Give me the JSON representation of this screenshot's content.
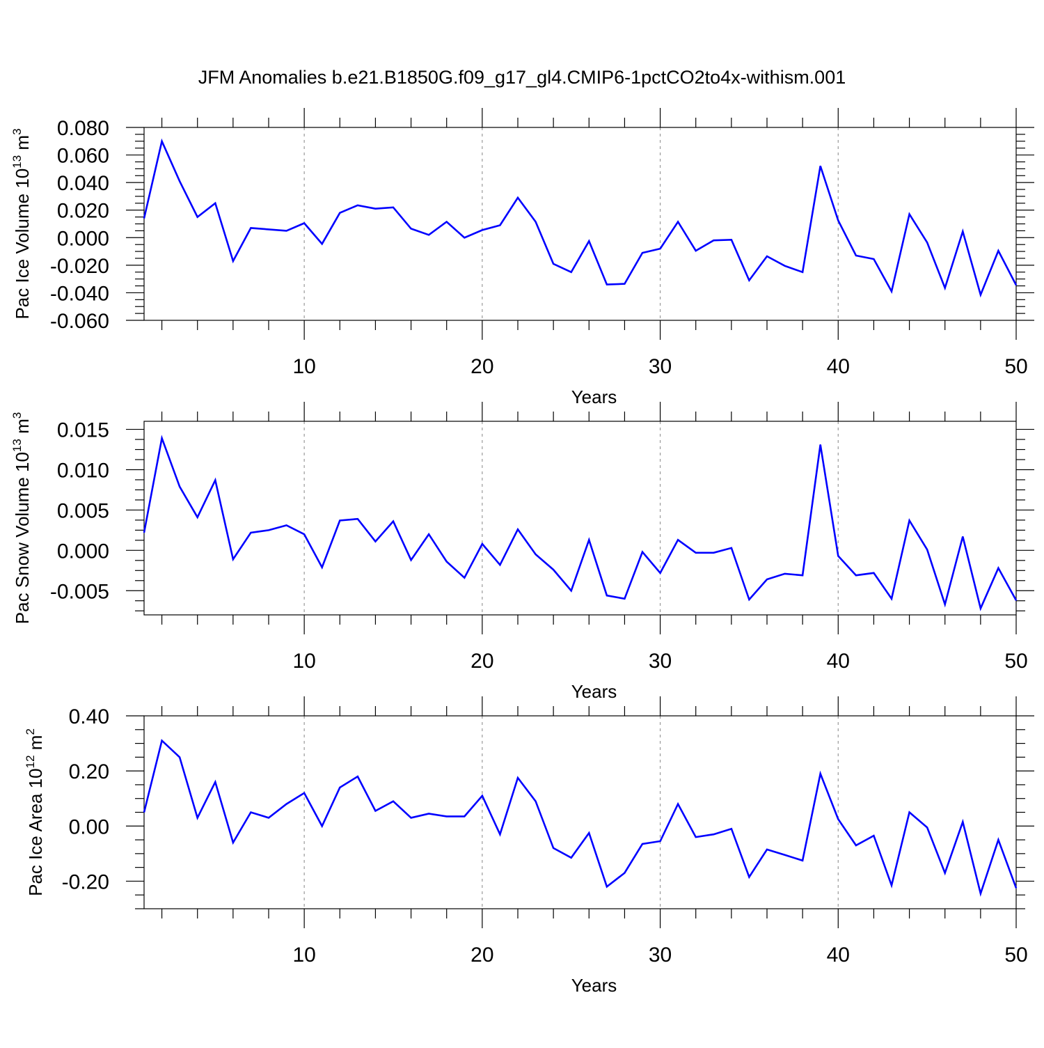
{
  "title": "JFM Anomalies b.e21.B1850G.f09_g17_gl4.CMIP6-1pctCO2to4x-withism.001",
  "colors": {
    "line": "#0000ff",
    "axis": "#000000",
    "grid": "#999999"
  },
  "chart_data": [
    {
      "type": "line",
      "ylabel_text": "Pac Ice Volume 10",
      "ylabel_exp": "13",
      "ylabel_unit": " m",
      "ylabel_unit_exp": "3",
      "xlabel": "Years",
      "xlim": [
        1,
        50
      ],
      "ylim": [
        -0.06,
        0.08
      ],
      "xticks": [
        10,
        20,
        30,
        40,
        50
      ],
      "xtick_labels": [
        "10",
        "20",
        "30",
        "40",
        "50"
      ],
      "yticks": [
        -0.06,
        -0.04,
        -0.02,
        0.0,
        0.02,
        0.04,
        0.06,
        0.08
      ],
      "ytick_labels": [
        "-0.060",
        "-0.040",
        "-0.020",
        "0.000",
        "0.020",
        "0.040",
        "0.060",
        "0.080"
      ],
      "series": [
        {
          "name": "Pac Ice Volume",
          "x": [
            1,
            2,
            3,
            4,
            5,
            6,
            7,
            8,
            9,
            10,
            11,
            12,
            13,
            14,
            15,
            16,
            17,
            18,
            19,
            20,
            21,
            22,
            23,
            24,
            25,
            26,
            27,
            28,
            29,
            30,
            31,
            32,
            33,
            34,
            35,
            36,
            37,
            38,
            39,
            40,
            41,
            42,
            43,
            44,
            45,
            46,
            47,
            48,
            49,
            50
          ],
          "values": [
            0.014,
            0.07,
            0.041,
            0.015,
            0.025,
            -0.017,
            0.007,
            0.006,
            0.005,
            0.0105,
            -0.0045,
            0.018,
            0.0235,
            0.021,
            0.022,
            0.0065,
            0.002,
            0.0115,
            0.0,
            0.0055,
            0.009,
            0.029,
            0.0115,
            -0.019,
            -0.025,
            -0.0025,
            -0.034,
            -0.0335,
            -0.011,
            -0.008,
            0.0115,
            -0.0095,
            -0.002,
            -0.0015,
            -0.031,
            -0.0135,
            -0.0205,
            -0.025,
            0.052,
            0.0125,
            -0.013,
            -0.0155,
            -0.039,
            0.017,
            -0.0035,
            -0.0365,
            0.0045,
            -0.0415,
            -0.0095,
            -0.0345
          ]
        }
      ]
    },
    {
      "type": "line",
      "ylabel_text": "Pac Snow Volume 10",
      "ylabel_exp": "13",
      "ylabel_unit": " m",
      "ylabel_unit_exp": "3",
      "xlabel": "Years",
      "xlim": [
        1,
        50
      ],
      "ylim": [
        -0.008,
        0.016
      ],
      "xticks": [
        10,
        20,
        30,
        40,
        50
      ],
      "xtick_labels": [
        "10",
        "20",
        "30",
        "40",
        "50"
      ],
      "yticks": [
        -0.005,
        0.0,
        0.005,
        0.01,
        0.015
      ],
      "ytick_labels": [
        "-0.005",
        "0.000",
        "0.005",
        "0.010",
        "0.015"
      ],
      "series": [
        {
          "name": "Pac Snow Volume",
          "x": [
            1,
            2,
            3,
            4,
            5,
            6,
            7,
            8,
            9,
            10,
            11,
            12,
            13,
            14,
            15,
            16,
            17,
            18,
            19,
            20,
            21,
            22,
            23,
            24,
            25,
            26,
            27,
            28,
            29,
            30,
            31,
            32,
            33,
            34,
            35,
            36,
            37,
            38,
            39,
            40,
            41,
            42,
            43,
            44,
            45,
            46,
            47,
            48,
            49,
            50
          ],
          "values": [
            0.0022,
            0.0139,
            0.0079,
            0.0041,
            0.0087,
            -0.0011,
            0.0022,
            0.0025,
            0.0031,
            0.002,
            -0.0021,
            0.0037,
            0.0039,
            0.0011,
            0.0036,
            -0.0012,
            0.002,
            -0.0014,
            -0.0034,
            0.0008,
            -0.0018,
            0.0026,
            -0.0005,
            -0.0024,
            -0.005,
            0.0013,
            -0.0056,
            -0.006,
            -0.0002,
            -0.0028,
            0.0013,
            -0.0003,
            -0.0003,
            0.0003,
            -0.0061,
            -0.0036,
            -0.0029,
            -0.0031,
            0.0131,
            -0.0007,
            -0.0031,
            -0.0028,
            -0.006,
            0.0037,
            0.0001,
            -0.0067,
            0.0017,
            -0.0072,
            -0.0022,
            -0.0062
          ]
        }
      ]
    },
    {
      "type": "line",
      "ylabel_text": "Pac Ice Area 10",
      "ylabel_exp": "12",
      "ylabel_unit": " m",
      "ylabel_unit_exp": "2",
      "xlabel": "Years",
      "xlim": [
        1,
        50
      ],
      "ylim": [
        -0.3,
        0.4
      ],
      "xticks": [
        10,
        20,
        30,
        40,
        50
      ],
      "xtick_labels": [
        "10",
        "20",
        "30",
        "40",
        "50"
      ],
      "yticks": [
        -0.2,
        0.0,
        0.2,
        0.4
      ],
      "ytick_labels": [
        "-0.20",
        "0.00",
        "0.20",
        "0.40"
      ],
      "series": [
        {
          "name": "Pac Ice Area",
          "x": [
            1,
            2,
            3,
            4,
            5,
            6,
            7,
            8,
            9,
            10,
            11,
            12,
            13,
            14,
            15,
            16,
            17,
            18,
            19,
            20,
            21,
            22,
            23,
            24,
            25,
            26,
            27,
            28,
            29,
            30,
            31,
            32,
            33,
            34,
            35,
            36,
            37,
            38,
            39,
            40,
            41,
            42,
            43,
            44,
            45,
            46,
            47,
            48,
            49,
            50
          ],
          "values": [
            0.05,
            0.31,
            0.25,
            0.03,
            0.16,
            -0.06,
            0.05,
            0.03,
            0.08,
            0.12,
            0.0,
            0.14,
            0.18,
            0.055,
            0.09,
            0.03,
            0.045,
            0.035,
            0.035,
            0.11,
            -0.03,
            0.175,
            0.09,
            -0.08,
            -0.115,
            -0.025,
            -0.22,
            -0.17,
            -0.065,
            -0.055,
            0.08,
            -0.04,
            -0.03,
            -0.01,
            -0.185,
            -0.085,
            -0.105,
            -0.125,
            0.19,
            0.025,
            -0.07,
            -0.035,
            -0.215,
            0.05,
            -0.005,
            -0.17,
            0.015,
            -0.245,
            -0.05,
            -0.225
          ]
        }
      ]
    }
  ]
}
